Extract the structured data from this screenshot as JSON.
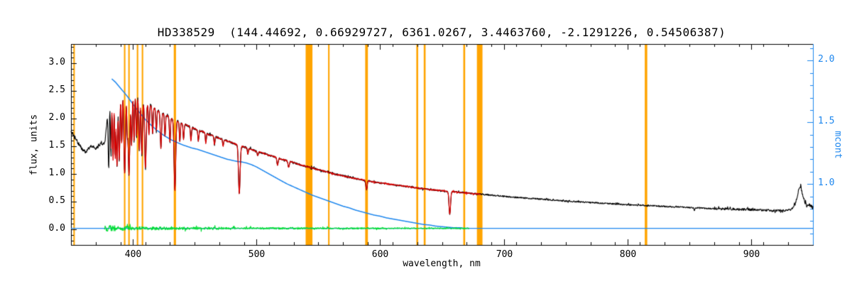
{
  "chart_data": {
    "type": "line",
    "title": "HD338529  (144.44692, 0.66929727, 6361.0267, 3.4463760, -2.1291226, 0.54506387)",
    "xlabel": "wavelength, nm",
    "ylabel_left": "flux, units",
    "ylabel_right": "mcont",
    "xlim": [
      350,
      950
    ],
    "ylim": [
      -0.28,
      3.35
    ],
    "grid": false,
    "x_majors": [
      400,
      500,
      600,
      700,
      800,
      900
    ],
    "x_minor_step": 20,
    "y_majors": [
      0.0,
      0.5,
      1.0,
      1.5,
      2.0,
      2.5,
      3.0
    ],
    "y_minor_step": 0.1,
    "right_axis": {
      "flux_at_1": 0.82,
      "flux_per_unit": 2.23,
      "majors": [
        1.0,
        1.5,
        2.0
      ],
      "minor_step": 0.1,
      "minor_range": [
        0.6,
        2.1
      ]
    },
    "colors": {
      "spectrum": "#000000",
      "fit": "#DD0000",
      "continuum": "#1C86EE",
      "residual": "#00DD33",
      "bands": "#FFA400",
      "axis": "#000000",
      "right_axis": "#1C86EE",
      "background": "#FFFFFF"
    },
    "bands_nm": [
      {
        "x": 352.5,
        "w": 1.2
      },
      {
        "x": 393.4,
        "w": 1.2
      },
      {
        "x": 396.9,
        "w": 1.2
      },
      {
        "x": 403.8,
        "w": 1.2
      },
      {
        "x": 407.8,
        "w": 1.2
      },
      {
        "x": 434.0,
        "w": 1.8
      },
      {
        "x": 542.5,
        "w": 5.5
      },
      {
        "x": 558.5,
        "w": 1.2
      },
      {
        "x": 589.0,
        "w": 2.2
      },
      {
        "x": 630.0,
        "w": 1.5
      },
      {
        "x": 636.0,
        "w": 1.5
      },
      {
        "x": 668.0,
        "w": 1.5
      },
      {
        "x": 680.5,
        "w": 4.5
      },
      {
        "x": 815.0,
        "w": 2.0
      }
    ],
    "series": {
      "spectrum": {
        "range": [
          350,
          950
        ],
        "anchors": [
          [
            350,
            1.78
          ],
          [
            353,
            1.68
          ],
          [
            356,
            1.55
          ],
          [
            359,
            1.45
          ],
          [
            362,
            1.4
          ],
          [
            364,
            1.45
          ],
          [
            366,
            1.52
          ],
          [
            368,
            1.5
          ],
          [
            370,
            1.46
          ],
          [
            372,
            1.5
          ],
          [
            374,
            1.55
          ],
          [
            376,
            1.52
          ],
          [
            377.5,
            1.6
          ],
          [
            379,
            1.95
          ],
          [
            380.5,
            2.35
          ],
          [
            382,
            2.62
          ],
          [
            384,
            2.7
          ],
          [
            386,
            2.62
          ],
          [
            388,
            2.66
          ],
          [
            390,
            2.62
          ],
          [
            392,
            2.58
          ],
          [
            394,
            2.55
          ],
          [
            396,
            2.52
          ],
          [
            398,
            2.48
          ],
          [
            400,
            2.45
          ],
          [
            402,
            2.42
          ],
          [
            404,
            2.4
          ],
          [
            406,
            2.36
          ],
          [
            408,
            2.33
          ],
          [
            410,
            2.3
          ],
          [
            412,
            2.27
          ],
          [
            414,
            2.24
          ],
          [
            416,
            2.21
          ],
          [
            418,
            2.18
          ],
          [
            420,
            2.15
          ],
          [
            424,
            2.1
          ],
          [
            428,
            2.05
          ],
          [
            432,
            2.0
          ],
          [
            436,
            1.96
          ],
          [
            440,
            1.92
          ],
          [
            444,
            1.88
          ],
          [
            448,
            1.84
          ],
          [
            452,
            1.8
          ],
          [
            456,
            1.77
          ],
          [
            460,
            1.73
          ],
          [
            464,
            1.7
          ],
          [
            468,
            1.66
          ],
          [
            472,
            1.63
          ],
          [
            476,
            1.6
          ],
          [
            480,
            1.57
          ],
          [
            485,
            1.53
          ],
          [
            490,
            1.49
          ],
          [
            495,
            1.45
          ],
          [
            500,
            1.41
          ],
          [
            505,
            1.38
          ],
          [
            510,
            1.34
          ],
          [
            515,
            1.31
          ],
          [
            520,
            1.27
          ],
          [
            525,
            1.24
          ],
          [
            530,
            1.21
          ],
          [
            535,
            1.17
          ],
          [
            540,
            1.14
          ],
          [
            545,
            1.11
          ],
          [
            550,
            1.08
          ],
          [
            555,
            1.05
          ],
          [
            560,
            1.02
          ],
          [
            565,
            0.99
          ],
          [
            570,
            0.97
          ],
          [
            575,
            0.94
          ],
          [
            580,
            0.92
          ],
          [
            585,
            0.9
          ],
          [
            590,
            0.88
          ],
          [
            595,
            0.86
          ],
          [
            600,
            0.84
          ],
          [
            610,
            0.81
          ],
          [
            620,
            0.78
          ],
          [
            630,
            0.75
          ],
          [
            640,
            0.72
          ],
          [
            650,
            0.7
          ],
          [
            660,
            0.68
          ],
          [
            670,
            0.66
          ],
          [
            680,
            0.64
          ],
          [
            690,
            0.62
          ],
          [
            700,
            0.6
          ],
          [
            715,
            0.57
          ],
          [
            730,
            0.55
          ],
          [
            745,
            0.52
          ],
          [
            760,
            0.5
          ],
          [
            775,
            0.48
          ],
          [
            790,
            0.46
          ],
          [
            805,
            0.44
          ],
          [
            820,
            0.43
          ],
          [
            835,
            0.41
          ],
          [
            850,
            0.4
          ],
          [
            865,
            0.38
          ],
          [
            880,
            0.37
          ],
          [
            895,
            0.36
          ],
          [
            910,
            0.35
          ],
          [
            920,
            0.34
          ],
          [
            928,
            0.34
          ],
          [
            933,
            0.37
          ],
          [
            936,
            0.47
          ],
          [
            938,
            0.68
          ],
          [
            940,
            0.8
          ],
          [
            942,
            0.6
          ],
          [
            944,
            0.45
          ],
          [
            946,
            0.42
          ],
          [
            948,
            0.44
          ],
          [
            950,
            0.4
          ]
        ],
        "dips": [
          [
            380.5,
            1.25,
            0.45
          ],
          [
            382.3,
            1.3,
            0.45
          ],
          [
            384.0,
            1.45,
            0.5
          ],
          [
            385.7,
            1.35,
            0.45
          ],
          [
            387.2,
            1.5,
            0.5
          ],
          [
            389.0,
            1.4,
            0.55
          ],
          [
            391.0,
            1.05,
            0.45
          ],
          [
            393.4,
            1.55,
            0.65
          ],
          [
            395.5,
            0.7,
            0.4
          ],
          [
            396.9,
            1.5,
            0.65
          ],
          [
            399.0,
            0.95,
            0.45
          ],
          [
            401.0,
            0.85,
            0.4
          ],
          [
            403.0,
            0.75,
            0.4
          ],
          [
            405.2,
            0.95,
            0.45
          ],
          [
            407.3,
            1.0,
            0.5
          ],
          [
            410.2,
            1.2,
            0.6
          ],
          [
            413.0,
            0.55,
            0.4
          ],
          [
            416.0,
            0.5,
            0.4
          ],
          [
            419.0,
            0.4,
            0.4
          ],
          [
            422.7,
            0.65,
            0.5
          ],
          [
            426.0,
            0.4,
            0.4
          ],
          [
            430.0,
            0.45,
            0.4
          ],
          [
            434.0,
            1.28,
            0.65
          ],
          [
            438.0,
            0.35,
            0.4
          ],
          [
            441.0,
            0.28,
            0.4
          ],
          [
            447.0,
            0.25,
            0.4
          ],
          [
            453.0,
            0.2,
            0.4
          ],
          [
            459.0,
            0.18,
            0.4
          ],
          [
            466.0,
            0.15,
            0.4
          ],
          [
            473.0,
            0.12,
            0.4
          ],
          [
            486.1,
            0.88,
            0.65
          ],
          [
            493.0,
            0.1,
            0.4
          ],
          [
            501.0,
            0.08,
            0.4
          ],
          [
            517.0,
            0.14,
            0.5
          ],
          [
            526.0,
            0.12,
            0.5
          ],
          [
            589.0,
            0.16,
            0.55
          ],
          [
            656.3,
            0.42,
            0.6
          ],
          [
            854.0,
            0.05,
            0.5
          ]
        ],
        "noise": [
          [
            350,
            378,
            0.03
          ],
          [
            378,
            415,
            0.04
          ],
          [
            415,
            500,
            0.02
          ],
          [
            500,
            600,
            0.016
          ],
          [
            600,
            700,
            0.013
          ],
          [
            700,
            870,
            0.012
          ],
          [
            870,
            935,
            0.02
          ],
          [
            935,
            950,
            0.035
          ]
        ]
      },
      "fit": {
        "use_spectrum_shape": true,
        "range": [
          382.5,
          681
        ],
        "noise": [
          [
            382.5,
            681,
            0.012
          ]
        ]
      },
      "continuum": {
        "range": [
          383,
          672
        ],
        "anchors": [
          [
            383,
            2.72
          ],
          [
            386,
            2.66
          ],
          [
            389,
            2.58
          ],
          [
            392,
            2.5
          ],
          [
            395,
            2.42
          ],
          [
            398,
            2.33
          ],
          [
            401,
            2.24
          ],
          [
            404,
            2.15
          ],
          [
            407,
            2.07
          ],
          [
            410,
            1.99
          ],
          [
            413,
            1.92
          ],
          [
            416,
            1.86
          ],
          [
            419,
            1.8
          ],
          [
            422,
            1.75
          ],
          [
            425,
            1.7
          ],
          [
            428,
            1.66
          ],
          [
            431,
            1.62
          ],
          [
            434,
            1.59
          ],
          [
            437,
            1.56
          ],
          [
            440,
            1.53
          ],
          [
            444,
            1.5
          ],
          [
            448,
            1.47
          ],
          [
            452,
            1.45
          ],
          [
            456,
            1.42
          ],
          [
            460,
            1.39
          ],
          [
            464,
            1.36
          ],
          [
            468,
            1.33
          ],
          [
            472,
            1.3
          ],
          [
            476,
            1.27
          ],
          [
            480,
            1.25
          ],
          [
            484,
            1.23
          ],
          [
            488,
            1.22
          ],
          [
            492,
            1.2
          ],
          [
            496,
            1.17
          ],
          [
            500,
            1.13
          ],
          [
            504,
            1.08
          ],
          [
            508,
            1.03
          ],
          [
            512,
            0.98
          ],
          [
            516,
            0.93
          ],
          [
            520,
            0.88
          ],
          [
            525,
            0.82
          ],
          [
            530,
            0.77
          ],
          [
            535,
            0.72
          ],
          [
            540,
            0.67
          ],
          [
            545,
            0.62
          ],
          [
            550,
            0.58
          ],
          [
            555,
            0.54
          ],
          [
            560,
            0.5
          ],
          [
            565,
            0.46
          ],
          [
            570,
            0.42
          ],
          [
            575,
            0.39
          ],
          [
            580,
            0.35
          ],
          [
            585,
            0.32
          ],
          [
            590,
            0.29
          ],
          [
            595,
            0.26
          ],
          [
            600,
            0.24
          ],
          [
            605,
            0.21
          ],
          [
            610,
            0.19
          ],
          [
            615,
            0.17
          ],
          [
            620,
            0.15
          ],
          [
            625,
            0.13
          ],
          [
            630,
            0.11
          ],
          [
            635,
            0.09
          ],
          [
            640,
            0.08
          ],
          [
            645,
            0.06
          ],
          [
            650,
            0.05
          ],
          [
            655,
            0.04
          ],
          [
            660,
            0.03
          ],
          [
            665,
            0.03
          ],
          [
            668,
            0.02
          ],
          [
            672,
            0.02
          ]
        ]
      },
      "baseline": {
        "range": [
          350,
          950
        ],
        "anchors": [
          [
            350,
            0.02
          ],
          [
            950,
            0.02
          ]
        ]
      },
      "residual": {
        "range": [
          377,
          672
        ],
        "anchors": [
          [
            377,
            0.02
          ],
          [
            672,
            0.02
          ]
        ],
        "noise": [
          [
            377,
            386,
            0.055
          ],
          [
            386,
            400,
            0.04
          ],
          [
            400,
            430,
            0.03
          ],
          [
            430,
            470,
            0.024
          ],
          [
            470,
            540,
            0.018
          ],
          [
            540,
            600,
            0.014
          ],
          [
            600,
            672,
            0.011
          ]
        ]
      }
    }
  }
}
